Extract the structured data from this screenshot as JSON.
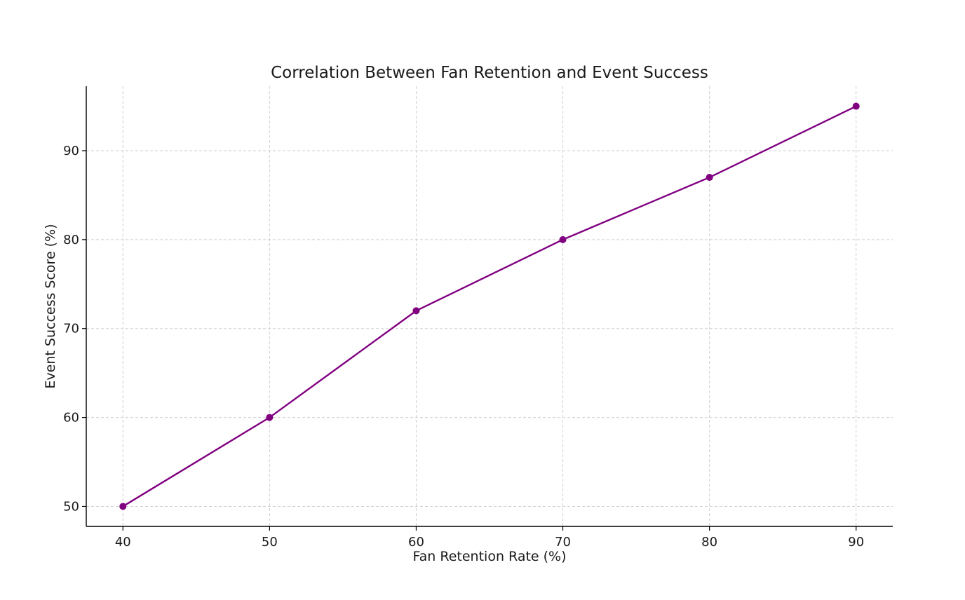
{
  "chart_data": {
    "type": "line",
    "title": "Correlation Between Fan Retention and Event Success",
    "xlabel": "Fan Retention Rate (%)",
    "ylabel": "Event Success Score (%)",
    "x": [
      40,
      50,
      60,
      70,
      80,
      90
    ],
    "series": [
      {
        "values": [
          50,
          60,
          72,
          80,
          87,
          95
        ],
        "color": "#800080",
        "marker": "circle"
      }
    ],
    "xticks": [
      40,
      50,
      60,
      70,
      80,
      90
    ],
    "yticks": [
      50,
      60,
      70,
      80,
      90
    ],
    "xlim": [
      37.5,
      92.5
    ],
    "ylim": [
      47.75,
      97.25
    ],
    "grid": true,
    "legend": "none"
  }
}
